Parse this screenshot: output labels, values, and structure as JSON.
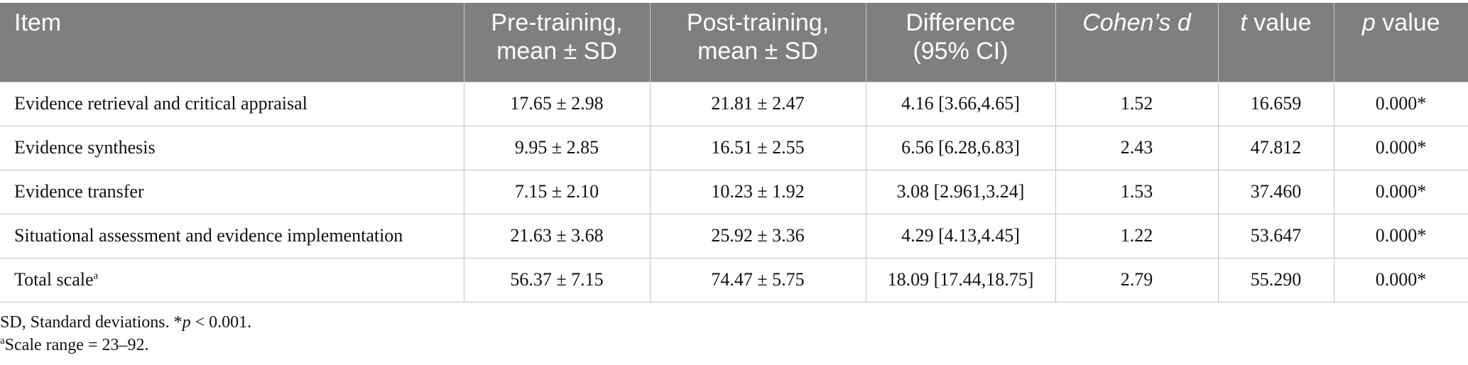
{
  "table": {
    "headers": {
      "item": "Item",
      "pre": [
        "Pre-training,",
        "mean ± SD"
      ],
      "post": [
        "Post-training,",
        "mean ± SD"
      ],
      "diff": [
        "Difference",
        "(95% CI)"
      ],
      "cohens_d": "Cohen’s d",
      "t_italic": "t",
      "t_rest": " value",
      "p_italic": "p",
      "p_rest": " value"
    },
    "rows": [
      {
        "item": "Evidence retrieval and critical appraisal",
        "sup": "",
        "pre": "17.65 ± 2.98",
        "post": "21.81 ± 2.47",
        "diff": "4.16 [3.66,4.65]",
        "d": "1.52",
        "t": "16.659",
        "p": "0.000*"
      },
      {
        "item": "Evidence synthesis",
        "sup": "",
        "pre": "9.95 ± 2.85",
        "post": "16.51 ± 2.55",
        "diff": "6.56 [6.28,6.83]",
        "d": "2.43",
        "t": "47.812",
        "p": "0.000*"
      },
      {
        "item": "Evidence transfer",
        "sup": "",
        "pre": "7.15 ± 2.10",
        "post": "10.23 ± 1.92",
        "diff": "3.08 [2.961,3.24]",
        "d": "1.53",
        "t": "37.460",
        "p": "0.000*"
      },
      {
        "item": "Situational assessment and evidence implementation",
        "sup": "",
        "pre": "21.63 ± 3.68",
        "post": "25.92 ± 3.36",
        "diff": "4.29 [4.13,4.45]",
        "d": "1.22",
        "t": "53.647",
        "p": "0.000*"
      },
      {
        "item": "Total scale",
        "sup": "a",
        "pre": "56.37 ± 7.15",
        "post": "74.47 ± 5.75",
        "diff": "18.09 [17.44,18.75]",
        "d": "2.79",
        "t": "55.290",
        "p": "0.000*"
      }
    ]
  },
  "notes": {
    "line1_a": "SD, Standard deviations. *",
    "line1_p": "p",
    "line1_b": " < 0.001.",
    "line2_sup": "a",
    "line2": "Scale range = 23–92."
  }
}
